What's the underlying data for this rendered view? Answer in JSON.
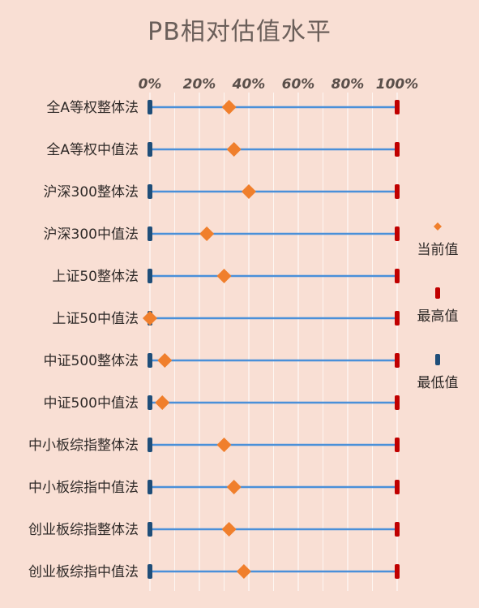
{
  "page": {
    "title": "PB相对估值水平"
  },
  "colors": {
    "background": "#f9dfd4",
    "line": "#4a90d9",
    "current": "#f07f2c",
    "max": "#c00000",
    "min": "#1f4e79",
    "grid": "#ffffff"
  },
  "chart_data": {
    "type": "dot-range",
    "title": "PB相对估值水平",
    "xlim": [
      0,
      100
    ],
    "x_ticks": [
      "0%",
      "20%",
      "40%",
      "60%",
      "80%",
      "100%"
    ],
    "grid": true,
    "legend_position": "right",
    "legend": [
      {
        "key": "current",
        "label": "当前值"
      },
      {
        "key": "max",
        "label": "最高值"
      },
      {
        "key": "min",
        "label": "最低值"
      }
    ],
    "categories": [
      "全A等权整体法",
      "全A等权中值法",
      "沪深300整体法",
      "沪深300中值法",
      "上证50整体法",
      "上证50中值法",
      "中证500整体法",
      "中证500中值法",
      "中小板综指整体法",
      "中小板综指中值法",
      "创业板综指整体法",
      "创业板综指中值法"
    ],
    "series": [
      {
        "name": "当前值",
        "values": [
          32,
          34,
          40,
          23,
          30,
          0,
          6,
          5,
          30,
          34,
          32,
          38
        ]
      },
      {
        "name": "最高值",
        "values": [
          100,
          100,
          100,
          100,
          100,
          100,
          100,
          100,
          100,
          100,
          100,
          100
        ]
      },
      {
        "name": "最低值",
        "values": [
          0,
          0,
          0,
          0,
          0,
          0,
          0,
          0,
          0,
          0,
          0,
          0
        ]
      }
    ]
  }
}
